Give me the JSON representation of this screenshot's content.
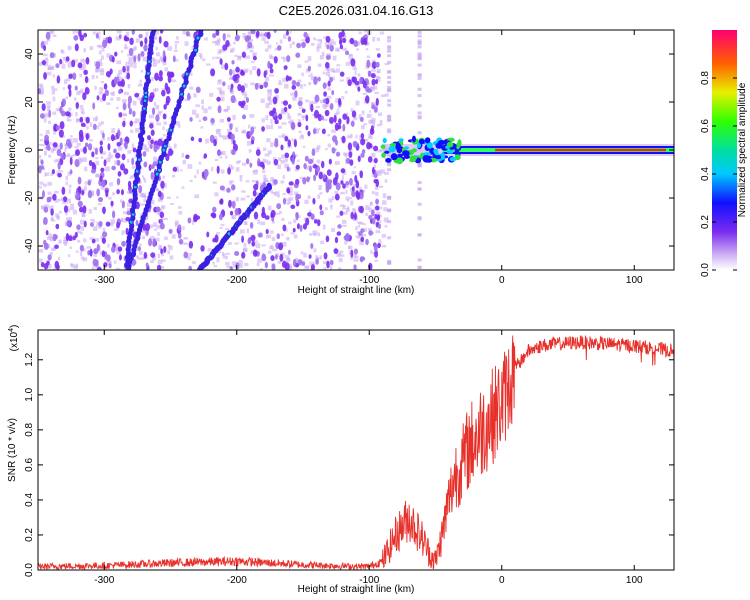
{
  "title": "C2E5.2026.031.04.16.G13",
  "chart_data": [
    {
      "type": "heatmap",
      "title": "C2E5.2026.031.04.16.G13",
      "xlabel": "Height of straight line (km)",
      "ylabel": "Frequency (Hz)",
      "xlim": [
        -350,
        130
      ],
      "ylim": [
        -50,
        50
      ],
      "x_ticks": [
        -300,
        -200,
        -100,
        0,
        100
      ],
      "y_ticks": [
        -40,
        -20,
        0,
        20,
        40
      ],
      "colorbar": {
        "label": "Normalized spectral amplitude",
        "range": [
          0.0,
          1.0
        ],
        "ticks": [
          0.0,
          0.2,
          0.4,
          0.6,
          0.8
        ],
        "tick_labels": [
          "0.0",
          "0.2",
          "0.4",
          "0.6",
          "0.8"
        ]
      },
      "features": [
        {
          "name": "noise",
          "x_range": [
            -350,
            -88
          ],
          "description_value": 0.15
        },
        {
          "name": "diagonal-trace-1",
          "from": [
            -282,
            -50
          ],
          "to": [
            -227,
            50
          ]
        },
        {
          "name": "diagonal-trace-2",
          "from": [
            -283,
            -48
          ],
          "to": [
            -263,
            50
          ]
        },
        {
          "name": "diagonal-trace-3",
          "from": [
            -228,
            -50
          ],
          "to": [
            -175,
            -15
          ]
        },
        {
          "name": "carrier-line",
          "x_range": [
            -90,
            130
          ],
          "y": 0
        }
      ]
    },
    {
      "type": "line",
      "title": "",
      "xlabel": "Height of straight line (km)",
      "ylabel": "SNR (10 * v/v)",
      "y_scale_label": "(x10",
      "y_scale_exp": "4",
      "xlim": [
        -350,
        130
      ],
      "ylim": [
        0,
        1.37
      ],
      "x_ticks": [
        -300,
        -200,
        -100,
        0,
        100
      ],
      "y_ticks": [
        0.0,
        0.2,
        0.4,
        0.6,
        0.8,
        1.0,
        1.2
      ],
      "y_tick_labels": [
        "0.0",
        "0.2",
        "0.4",
        "0.6",
        "0.8",
        "1.0",
        "1.2"
      ],
      "series": [
        {
          "name": "SNR",
          "color": "#e8302a",
          "x": [
            -350,
            -300,
            -250,
            -200,
            -150,
            -110,
            -100,
            -90,
            -80,
            -70,
            -60,
            -55,
            -50,
            -45,
            -40,
            -35,
            -30,
            -25,
            -20,
            -15,
            -10,
            -5,
            0,
            5,
            10,
            20,
            30,
            40,
            60,
            80,
            100,
            120,
            130
          ],
          "values": [
            0.02,
            0.025,
            0.04,
            0.05,
            0.03,
            0.02,
            0.02,
            0.05,
            0.2,
            0.3,
            0.18,
            0.1,
            0.05,
            0.2,
            0.4,
            0.55,
            0.6,
            0.7,
            0.75,
            0.8,
            0.85,
            0.9,
            0.95,
            1.05,
            1.15,
            1.25,
            1.28,
            1.29,
            1.3,
            1.29,
            1.28,
            1.26,
            1.25
          ]
        }
      ]
    }
  ],
  "colors": {
    "line": "#e8302a",
    "noise_dot": "#7a2cf0",
    "noise_halo": "#c9a8f4"
  }
}
